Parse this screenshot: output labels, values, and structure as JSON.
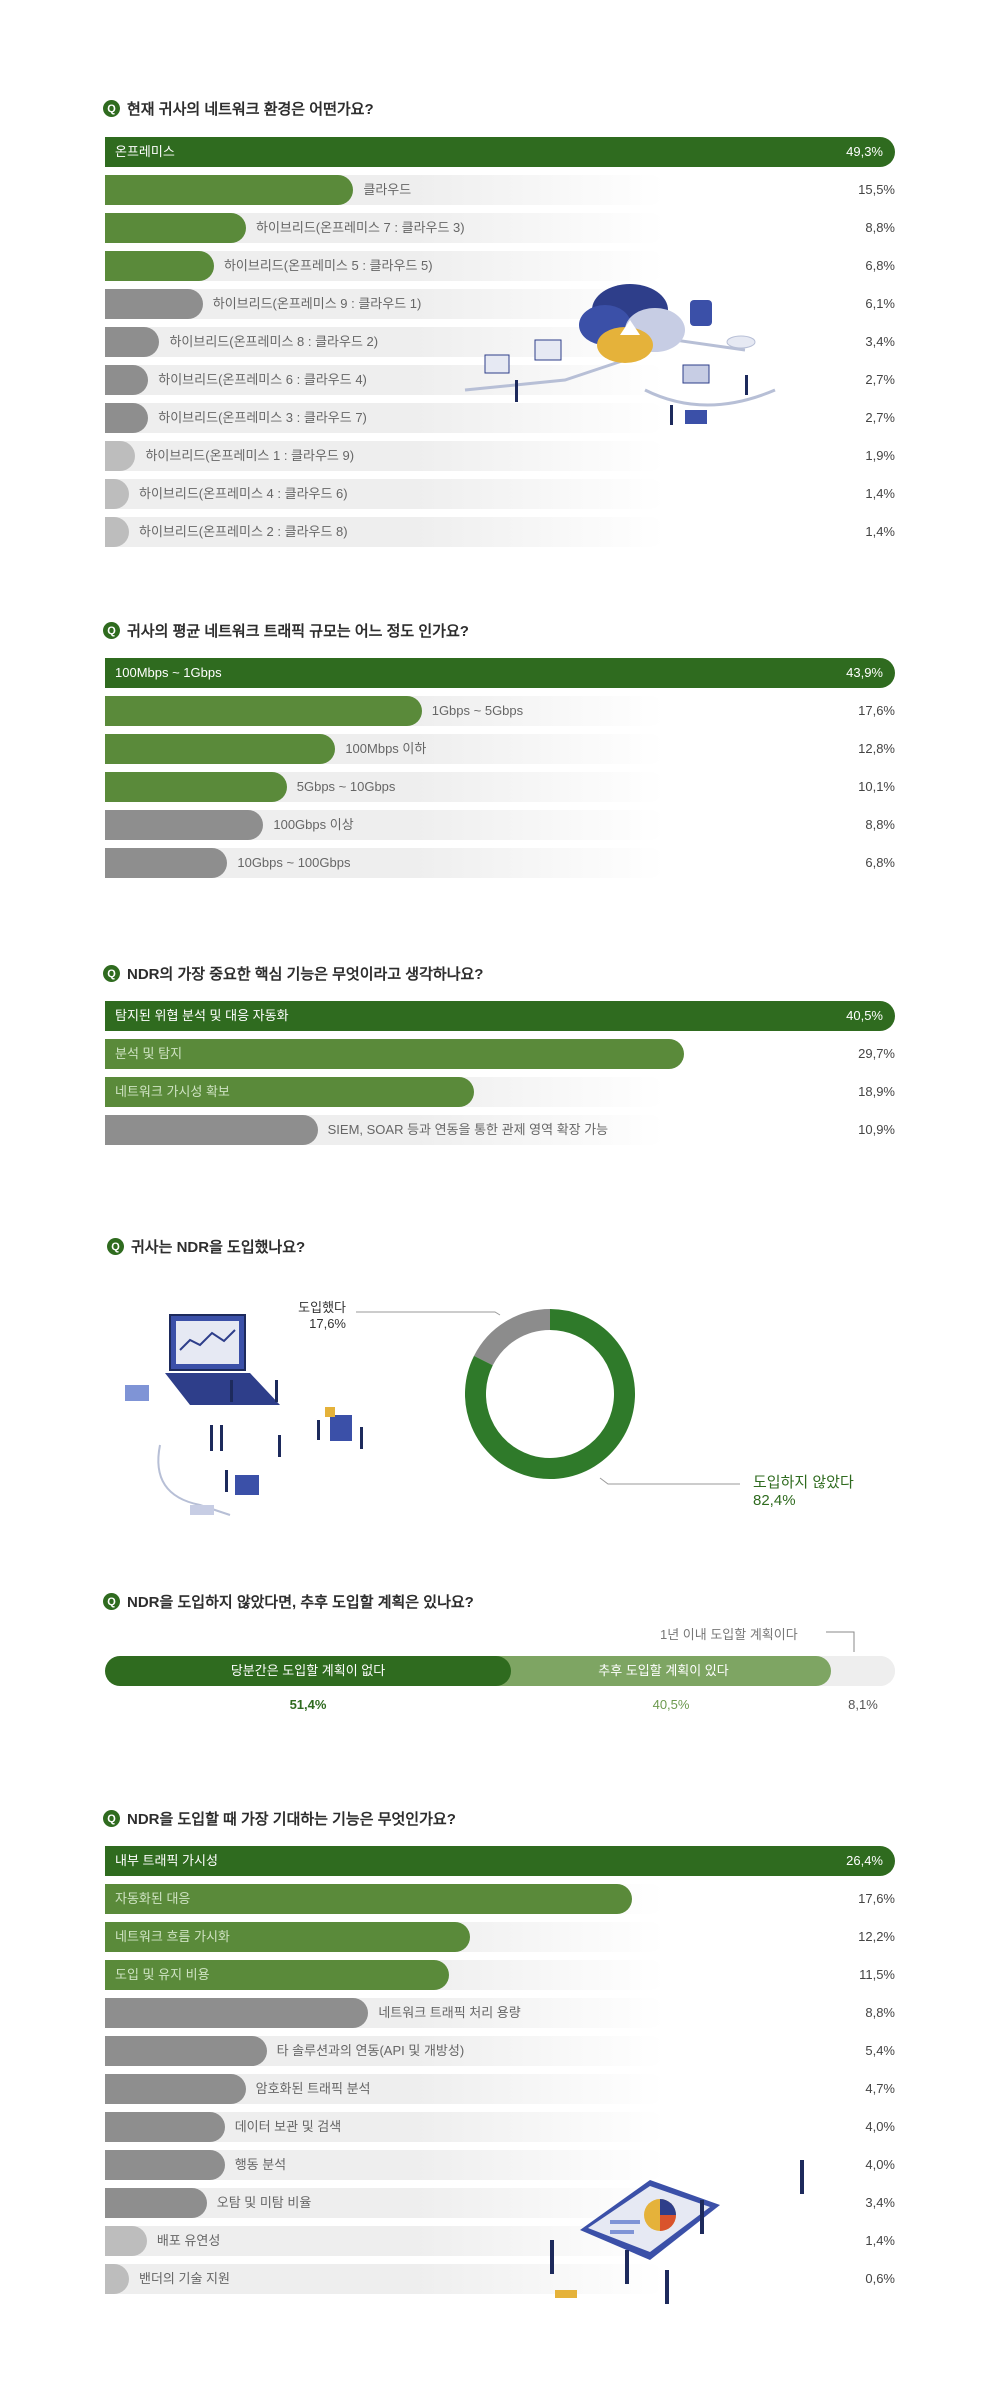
{
  "chart_data": [
    {
      "type": "bar",
      "title": "현재 귀사의 네트워크 환경은 어떤가요?",
      "categories": [
        "온프레미스",
        "클라우드",
        "하이브리드(온프레미스 7 : 클라우드 3)",
        "하이브리드(온프레미스 5 : 클라우드 5)",
        "하이브리드(온프레미스 9 : 클라우드 1)",
        "하이브리드(온프레미스 8 : 클라우드 2)",
        "하이브리드(온프레미스 6 : 클라우드 4)",
        "하이브리드(온프레미스 3 : 클라우드 7)",
        "하이브리드(온프레미스 1 : 클라우드 9)",
        "하이브리드(온프레미스 4 : 클라우드 6)",
        "하이브리드(온프레미스 2 : 클라우드 8)"
      ],
      "values": [
        49.3,
        15.5,
        8.8,
        6.8,
        6.1,
        3.4,
        2.7,
        2.7,
        1.9,
        1.4,
        1.4
      ],
      "value_labels": [
        "49,3%",
        "15,5%",
        "8,8%",
        "6,8%",
        "6,1%",
        "3,4%",
        "2,7%",
        "2,7%",
        "1,9%",
        "1,4%",
        "1,4%"
      ],
      "colors": [
        "first",
        "green",
        "green",
        "green",
        "gray",
        "gray",
        "gray",
        "gray",
        "light",
        "light",
        "light"
      ]
    },
    {
      "type": "bar",
      "title": "귀사의 평균 네트워크 트래픽 규모는 어느 정도 인가요?",
      "categories": [
        "100Mbps ~ 1Gbps",
        "1Gbps ~ 5Gbps",
        "100Mbps 이하",
        "5Gbps ~ 10Gbps",
        "100Gbps 이상",
        "10Gbps ~ 100Gbps"
      ],
      "values": [
        43.9,
        17.6,
        12.8,
        10.1,
        8.8,
        6.8
      ],
      "value_labels": [
        "43,9%",
        "17,6%",
        "12,8%",
        "10,1%",
        "8,8%",
        "6,8%"
      ],
      "colors": [
        "first",
        "green",
        "green",
        "green",
        "gray",
        "gray"
      ]
    },
    {
      "type": "bar",
      "title": "NDR의 가장 중요한 핵심 기능은 무엇이라고 생각하나요?",
      "categories": [
        "탐지된 위협 분석 및 대응 자동화",
        "분석 및 탐지",
        "네트워크 가시성 확보",
        "SIEM, SOAR 등과 연동을 통한 관제 영역 확장 가능"
      ],
      "values": [
        40.5,
        29.7,
        18.9,
        10.9
      ],
      "value_labels": [
        "40,5%",
        "29,7%",
        "18,9%",
        "10,9%"
      ],
      "colors": [
        "first",
        "green",
        "green",
        "gray"
      ]
    },
    {
      "type": "pie",
      "title": "귀사는 NDR을 도입했나요?",
      "categories": [
        "도입했다",
        "도입하지 않았다"
      ],
      "values": [
        17.6,
        82.4
      ],
      "value_labels": [
        "17,6%",
        "82,4%"
      ],
      "colors": [
        "#8c8c8c",
        "#2f7a2a"
      ]
    },
    {
      "type": "bar",
      "title": "NDR을 도입하지 않았다면, 추후 도입할 계획은 있나요?",
      "categories": [
        "당분간은 도입할 계획이 없다",
        "추후 도입할 계획이 있다",
        "1년 이내 도입할 계획이다"
      ],
      "values": [
        51.4,
        40.5,
        8.1
      ],
      "value_labels": [
        "51,4%",
        "40,5%",
        "8,1%"
      ],
      "colors": [
        "#2f6b1f",
        "#7ea563",
        "#eeeeee"
      ]
    },
    {
      "type": "bar",
      "title": "NDR을 도입할 때 가장 기대하는 기능은 무엇인가요?",
      "categories": [
        "내부 트래픽 가시성",
        "자동화된 대응",
        "네트워크 흐름 가시화",
        "도입 및 유지 비용",
        "네트워크 트래픽 처리 용량",
        "타 솔루션과의 연동(API 및 개방성)",
        "암호화된 트래픽 분석",
        "데이터 보관 및 검색",
        "행동 분석",
        "오탐 및 미탐 비율",
        "배포 유연성",
        "밴더의 기술 지원"
      ],
      "values": [
        26.4,
        17.6,
        12.2,
        11.5,
        8.8,
        5.4,
        4.7,
        4.0,
        4.0,
        3.4,
        1.4,
        0.6
      ],
      "value_labels": [
        "26,4%",
        "17,6%",
        "12,2%",
        "11,5%",
        "8,8%",
        "5,4%",
        "4,7%",
        "4,0%",
        "4,0%",
        "3,4%",
        "1,4%",
        "0,6%"
      ],
      "colors": [
        "first",
        "green",
        "green",
        "green",
        "gray",
        "gray",
        "gray",
        "gray",
        "gray",
        "gray",
        "light",
        "light"
      ]
    }
  ]
}
